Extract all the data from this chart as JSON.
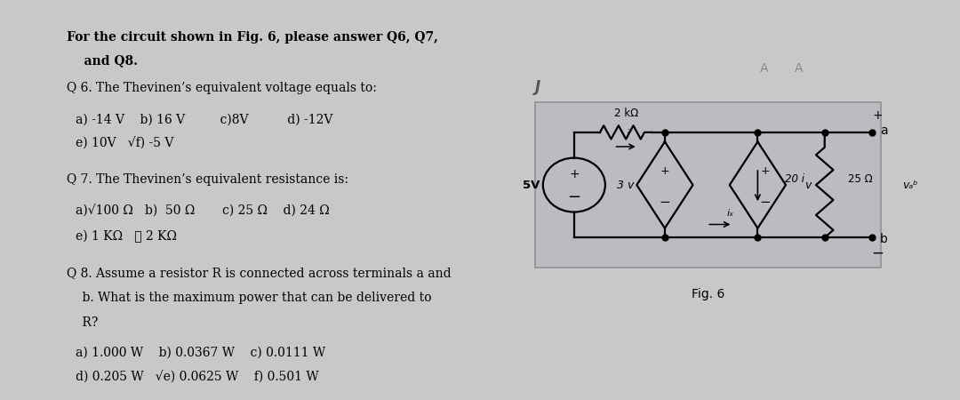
{
  "bg_color": "#c8c8c8",
  "left_panel_bg": "#dde0e8",
  "right_panel_bg": "#c8ccd4",
  "circuit_box_bg": "#c0c4cc",
  "title_line1": "For the circuit shown in Fig. 6, please answer Q6, Q7,",
  "title_line2": "    and Q8.",
  "q6_title": "Q 6. The Thevinen’s equivalent voltage equals to:",
  "q6_a1": "a) -14 V    b) 16 V         c)8V          d) -12V",
  "q6_a2": "e) 10V   √f) -5 V",
  "q7_title": "Q 7. The Thevinen’s equivalent resistance is:",
  "q7_a1": "a)√100 Ω   b)  50 Ω       c) 25 Ω    d) 24 Ω",
  "q7_a2": "e) 1 KΩ   Ⓕ 2 KΩ",
  "q8_title1": "Q 8. Assume a resistor R is connected across terminals a and",
  "q8_title2": "    b. What is the maximum power that can be delivered to",
  "q8_title3": "    R?",
  "q8_a1": "a) 1.000 W    b) 0.0367 W    c) 0.0111 W",
  "q8_a2": "d) 0.205 W   √e) 0.0625 W    f) 0.501 W",
  "fig6": "Fig. 6",
  "lbl_2kOhm": "2 kΩ",
  "lbl_i": "i",
  "lbl_3v": "3 v",
  "lbl_5V": "5V",
  "lbl_20i": "20 i",
  "lbl_v": "v",
  "lbl_25Ohm": "25 Ω",
  "lbl_vab": "vₐᵇ",
  "lbl_a": "a",
  "lbl_b": "b",
  "lbl_ix": "iₓ"
}
